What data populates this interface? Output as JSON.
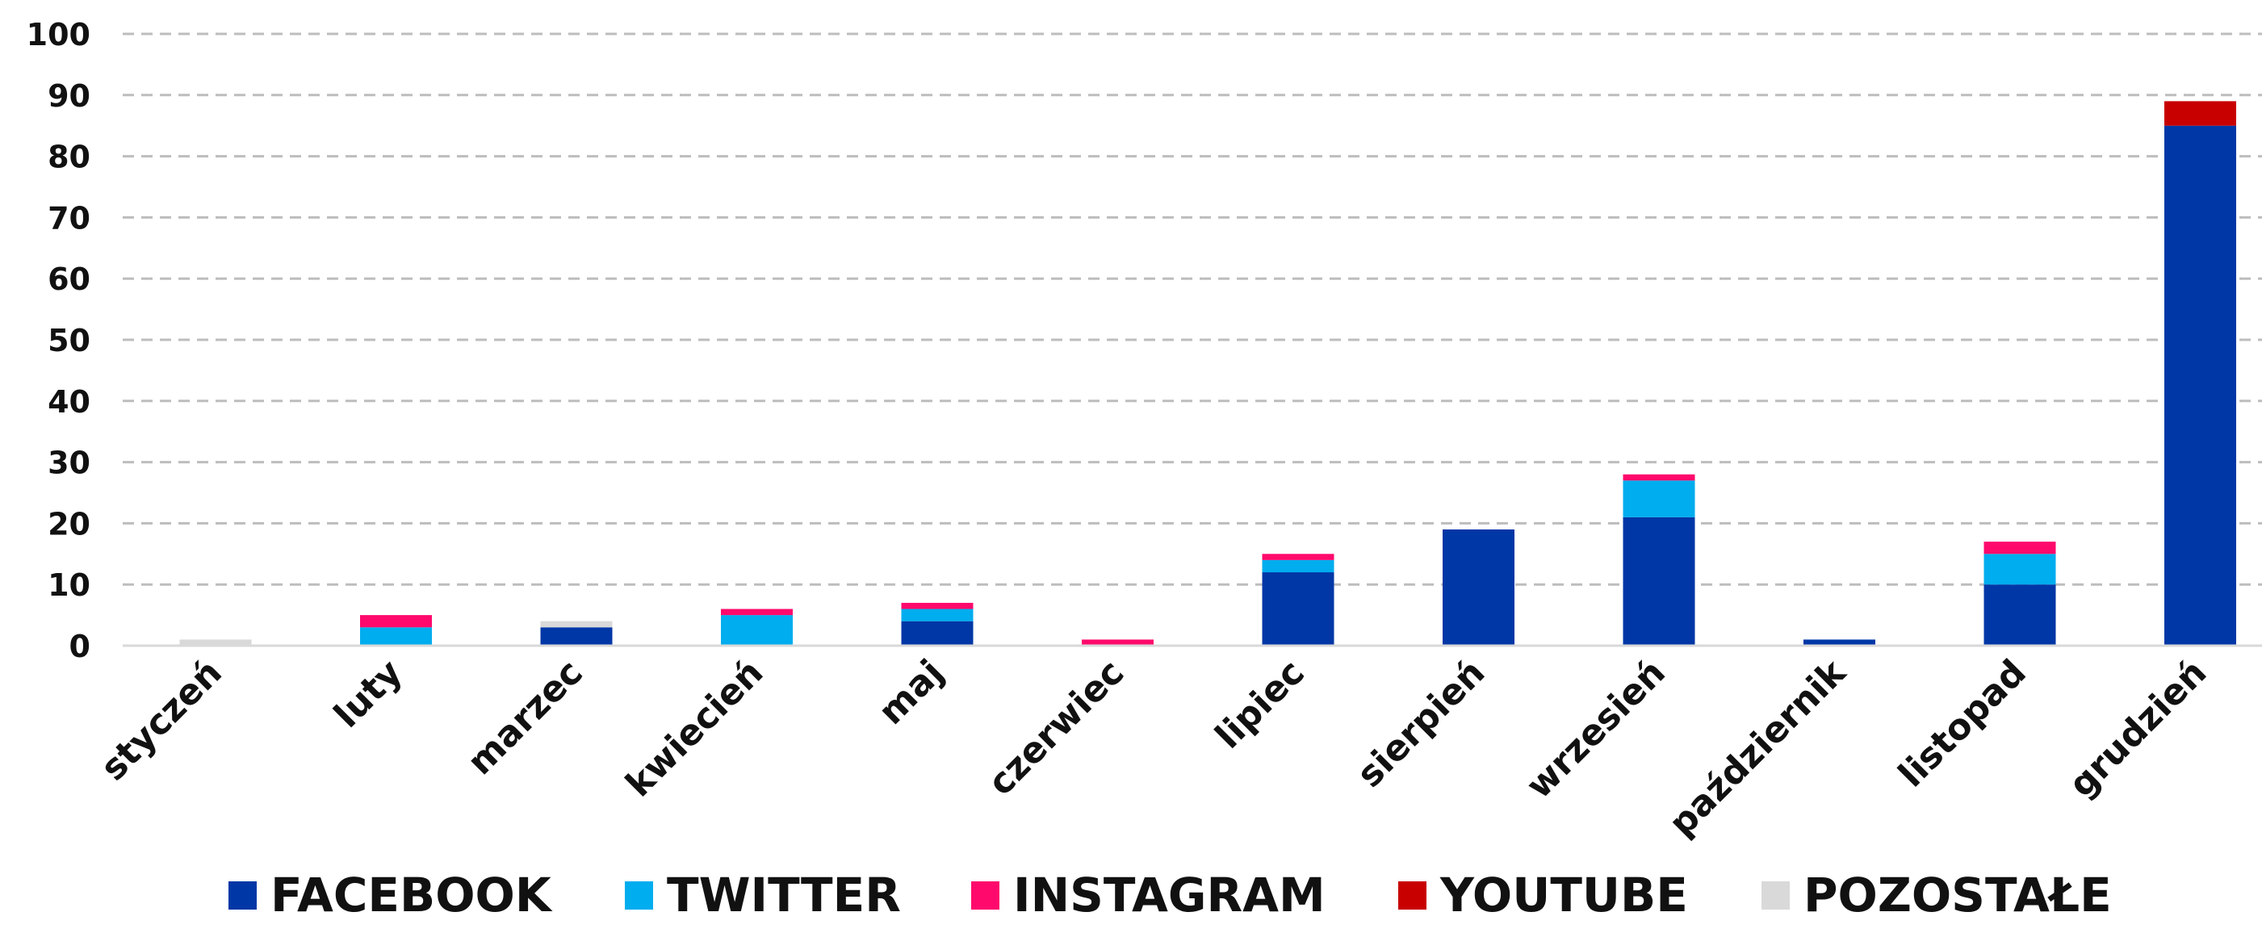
{
  "chart_data": {
    "type": "bar",
    "stacked": true,
    "title": "",
    "xlabel": "",
    "ylabel": "",
    "ylim": [
      0,
      100
    ],
    "yticks": [
      0,
      10,
      20,
      30,
      40,
      50,
      60,
      70,
      80,
      90,
      100
    ],
    "grid": true,
    "legend_position": "bottom",
    "categories": [
      "styczeń",
      "luty",
      "marzec",
      "kwiecień",
      "maj",
      "czerwiec",
      "lipiec",
      "sierpień",
      "wrzesień",
      "październik",
      "listopad",
      "grudzień"
    ],
    "series": [
      {
        "name": "FACEBOOK",
        "color": "#0037a6",
        "values": [
          0,
          0,
          3,
          0,
          4,
          0,
          12,
          19,
          21,
          1,
          10,
          85
        ]
      },
      {
        "name": "TWITTER",
        "color": "#00adee",
        "values": [
          0,
          3,
          0,
          5,
          2,
          0,
          2,
          0,
          6,
          0,
          5,
          0
        ]
      },
      {
        "name": "INSTAGRAM",
        "color": "#ff0a6c",
        "values": [
          0,
          2,
          0,
          1,
          1,
          1,
          1,
          0,
          1,
          0,
          2,
          0
        ]
      },
      {
        "name": "YOUTUBE",
        "color": "#c80000",
        "values": [
          0,
          0,
          0,
          0,
          0,
          0,
          0,
          0,
          0,
          0,
          0,
          4
        ]
      },
      {
        "name": "POZOSTAŁE",
        "color": "#d9d9d9",
        "values": [
          1,
          0,
          1,
          0,
          0,
          0,
          0,
          0,
          0,
          0,
          0,
          0
        ]
      }
    ]
  }
}
